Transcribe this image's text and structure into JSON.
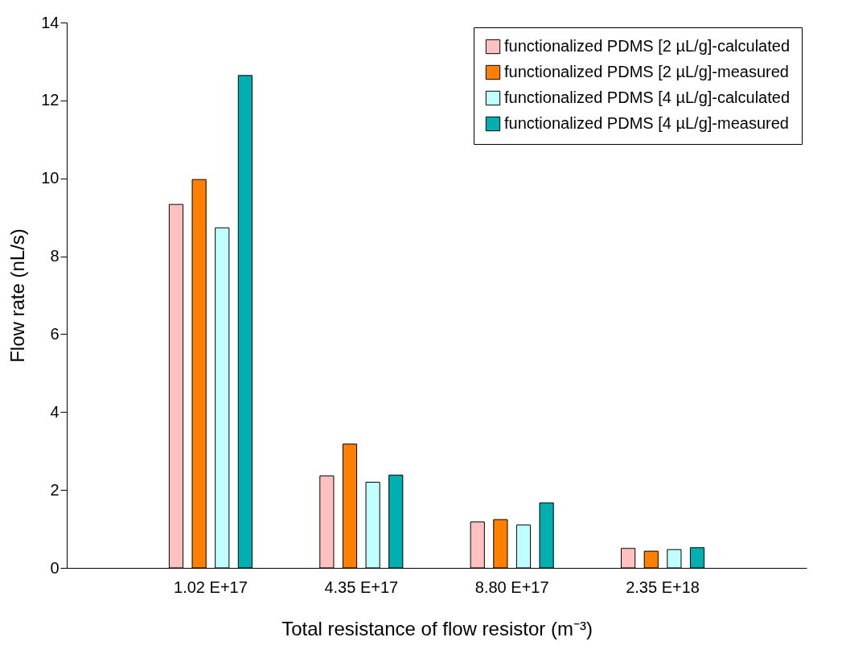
{
  "chart_data": {
    "type": "bar",
    "xlabel": "Total resistance of flow resistor (m⁻³)",
    "ylabel": "Flow rate (nL/s)",
    "categories": [
      "1.02 E+17",
      "4.35 E+17",
      "8.80 E+17",
      "2.35 E+18"
    ],
    "series": [
      {
        "name": "functionalized PDMS [2 µL/g]-calculated",
        "color": "#ffc0c0",
        "values": [
          9.33,
          2.36,
          1.18,
          0.5
        ]
      },
      {
        "name": "functionalized PDMS [2 µL/g]-measured",
        "color": "#ff8000",
        "values": [
          9.97,
          3.18,
          1.24,
          0.43
        ]
      },
      {
        "name": "functionalized PDMS [4 µL/g]-calculated",
        "color": "#c0ffff",
        "values": [
          8.73,
          2.2,
          1.1,
          0.47
        ]
      },
      {
        "name": "functionalized PDMS [4 µL/g]-measured",
        "color": "#00b0b0",
        "values": [
          12.64,
          2.38,
          1.67,
          0.52
        ]
      }
    ],
    "ylim": [
      0,
      14
    ],
    "yticks": [
      0,
      2,
      4,
      6,
      8,
      10,
      12,
      14
    ],
    "grid": false,
    "legend": "top right"
  }
}
